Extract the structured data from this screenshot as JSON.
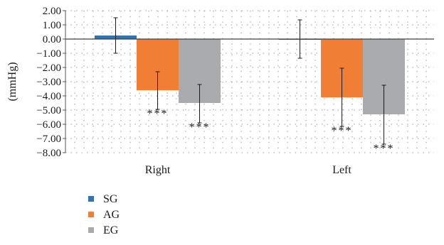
{
  "chart_data": {
    "type": "bar",
    "ylabel": "(mmHg)",
    "categories": [
      "Right",
      "Left"
    ],
    "ylim": [
      -8,
      2
    ],
    "y_ticks": [
      "2.00",
      "1.00",
      "0.00",
      "−1.00",
      "−2.00",
      "−3.00",
      "−4.00",
      "−5.00",
      "−6.00",
      "−7.00",
      "−8.00"
    ],
    "grid": "dotted",
    "legend_position": "bottom-left",
    "series": [
      {
        "name": "SG",
        "color": "#2e75b6",
        "values": [
          0.25,
          -0.05
        ],
        "error_low": [
          -1.0,
          -1.35
        ],
        "error_high": [
          1.5,
          1.35
        ],
        "significance": [
          "",
          ""
        ]
      },
      {
        "name": "AG",
        "color": "#f07f35",
        "values": [
          -3.6,
          -4.1
        ],
        "error_low": [
          -4.95,
          -6.15
        ],
        "error_high": [
          -2.3,
          -2.05
        ],
        "significance": [
          "***",
          "***"
        ]
      },
      {
        "name": "EG",
        "color": "#a9abae",
        "values": [
          -4.5,
          -5.3
        ],
        "error_low": [
          -5.9,
          -7.4
        ],
        "error_high": [
          -3.2,
          -3.25
        ],
        "significance": [
          "***",
          "***"
        ]
      }
    ]
  }
}
